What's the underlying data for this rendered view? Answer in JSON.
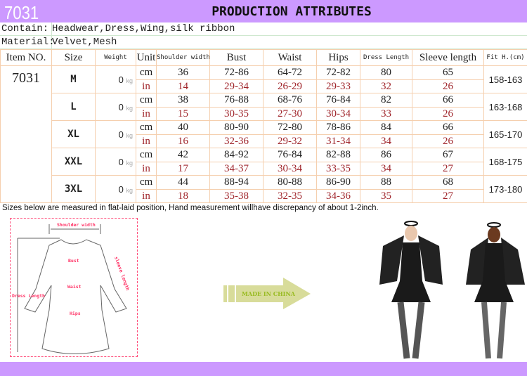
{
  "header": {
    "code": "7031",
    "title": "PRODUCTION ATTRIBUTES"
  },
  "contain": {
    "label": "Contain:",
    "value": "Headwear,Dress,Wing,silk ribbon"
  },
  "material": {
    "label": "Material:",
    "value": "Velvet,Mesh"
  },
  "columns": [
    "Item NO.",
    "Size",
    "Weight",
    "Unit",
    "Shoulder width",
    "Bust",
    "Waist",
    "Hips",
    "Dress Length",
    "Sleeve length",
    "Fit H.(cm)"
  ],
  "item_no": "7031",
  "units": {
    "cm": "cm",
    "in": "in",
    "kg": "kg"
  },
  "rows": [
    {
      "size": "M",
      "weight": "0",
      "cm": [
        "36",
        "72-86",
        "64-72",
        "72-82",
        "80",
        "65"
      ],
      "in": [
        "14",
        "29-34",
        "26-29",
        "29-33",
        "32",
        "26"
      ],
      "fit": "158-163"
    },
    {
      "size": "L",
      "weight": "0",
      "cm": [
        "38",
        "76-88",
        "68-76",
        "76-84",
        "82",
        "66"
      ],
      "in": [
        "15",
        "30-35",
        "27-30",
        "30-34",
        "33",
        "26"
      ],
      "fit": "163-168"
    },
    {
      "size": "XL",
      "weight": "0",
      "cm": [
        "40",
        "80-90",
        "72-80",
        "78-86",
        "84",
        "66"
      ],
      "in": [
        "16",
        "32-36",
        "29-32",
        "31-34",
        "34",
        "26"
      ],
      "fit": "165-170"
    },
    {
      "size": "XXL",
      "weight": "0",
      "cm": [
        "42",
        "84-92",
        "76-84",
        "82-88",
        "86",
        "67"
      ],
      "in": [
        "17",
        "34-37",
        "30-34",
        "33-35",
        "34",
        "27"
      ],
      "fit": "168-175"
    },
    {
      "size": "3XL",
      "weight": "0",
      "cm": [
        "44",
        "88-94",
        "80-88",
        "86-90",
        "88",
        "68"
      ],
      "in": [
        "18",
        "35-38",
        "32-35",
        "34-36",
        "35",
        "27"
      ],
      "fit": "173-180"
    }
  ],
  "note": "Sizes below are measured in flat-laid position, Hand measurement willhave discrepancy of about 1-2inch.",
  "diagram": {
    "shoulder": "Shoulder width",
    "bust": "Bust",
    "waist": "Waist",
    "hips": "Hips",
    "dress": "Dress Length",
    "sleeve": "sleeve length"
  },
  "badge": "MADE IN CHINA",
  "colors": {
    "bar": "#cc99ff",
    "inch": "#a0262c",
    "border": "#f5cfae",
    "diagram": "#ff3366",
    "arrow": "#d8dc9a",
    "badge_text": "#99bb22"
  }
}
